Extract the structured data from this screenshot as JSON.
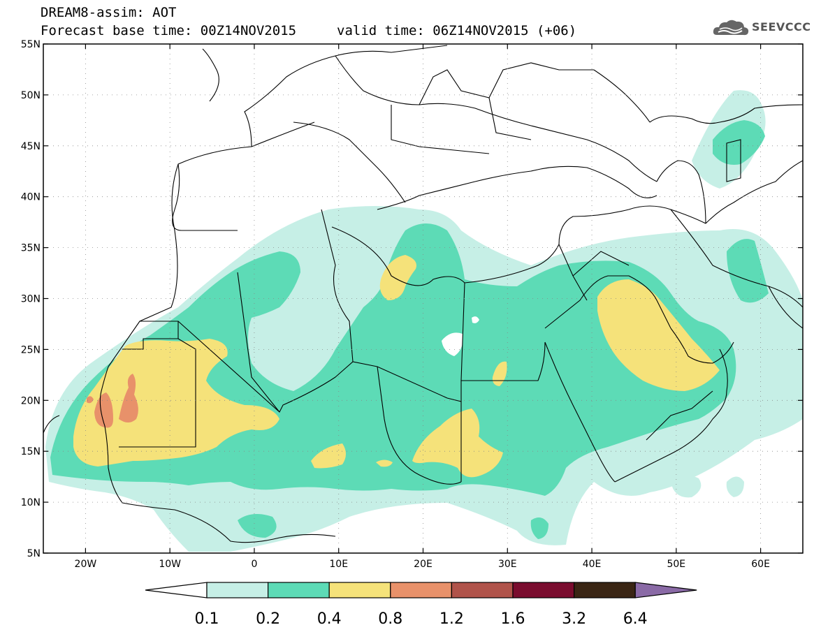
{
  "header": {
    "title_line1": "DREAM8-assim: AOT",
    "title_line2_base": "Forecast base time: 00Z14NOV2015",
    "title_line2_valid": "valid time: 06Z14NOV2015 (+06)"
  },
  "logo": {
    "text": "SEEVCCC",
    "icon": "cloud-logo-icon"
  },
  "map": {
    "lon_range": [
      -25,
      65
    ],
    "lat_range": [
      5,
      55
    ],
    "lon_ticks": [
      "20W",
      "10W",
      "0",
      "10E",
      "20E",
      "30E",
      "40E",
      "50E",
      "60E"
    ],
    "lat_ticks": [
      "5N",
      "10N",
      "15N",
      "20N",
      "25N",
      "30N",
      "35N",
      "40N",
      "45N",
      "50N",
      "55N"
    ],
    "gridlines": "dotted"
  },
  "colorbar": {
    "labels": [
      "0.1",
      "0.2",
      "0.4",
      "0.8",
      "1.2",
      "1.6",
      "3.2",
      "6.4"
    ],
    "colors": [
      "#ffffff",
      "#c6efe6",
      "#5ddbb6",
      "#f5e27a",
      "#e8916a",
      "#b0534a",
      "#7a0c2e",
      "#3a2514",
      "#8a6aa6"
    ]
  }
}
